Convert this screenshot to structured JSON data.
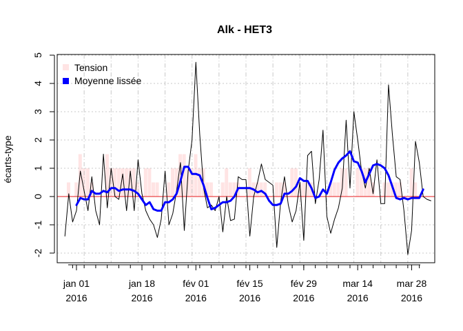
{
  "chart_data": {
    "type": "line",
    "title": "Alk - HET3",
    "xlabel": "",
    "ylabel": "écarts-type",
    "ylim": [
      -2,
      5
    ],
    "yticks": [
      -2,
      -1,
      0,
      1,
      2,
      3,
      4,
      5
    ],
    "x_range": [
      "2015-12-27",
      "2016-04-03"
    ],
    "xticks": [
      {
        "date": "2016-01-01",
        "label": [
          "jan 01",
          "2016"
        ]
      },
      {
        "date": "2016-01-18",
        "label": [
          "jan 18",
          "2016"
        ]
      },
      {
        "date": "2016-02-01",
        "label": [
          "fév 01",
          "2016"
        ]
      },
      {
        "date": "2016-02-15",
        "label": [
          "fév 15",
          "2016"
        ]
      },
      {
        "date": "2016-02-29",
        "label": [
          "fév 29",
          "2016"
        ]
      },
      {
        "date": "2016-03-14",
        "label": [
          "mar 14",
          "2016"
        ]
      },
      {
        "date": "2016-03-28",
        "label": [
          "mar 28",
          "2016"
        ]
      }
    ],
    "reference_line": {
      "y": 0,
      "color": "#e41a1c"
    },
    "grid": true,
    "legend": {
      "position": "top-left",
      "entries": [
        "Tension",
        "Moyenne lissée"
      ]
    },
    "series": [
      {
        "name": "Tension",
        "type": "bar",
        "color": "#ffe4e4",
        "x": [
          "2015-12-30",
          "2016-01-01",
          "2016-01-02",
          "2016-01-03",
          "2016-01-04",
          "2016-01-05",
          "2016-01-09",
          "2016-01-10",
          "2016-01-11",
          "2016-01-12",
          "2016-01-13",
          "2016-01-14",
          "2016-01-15",
          "2016-01-16",
          "2016-01-17",
          "2016-01-19",
          "2016-01-20",
          "2016-01-21",
          "2016-01-22",
          "2016-01-25",
          "2016-01-26",
          "2016-01-27",
          "2016-01-28",
          "2016-01-29",
          "2016-01-30",
          "2016-01-31",
          "2016-02-01",
          "2016-02-02",
          "2016-02-03",
          "2016-02-04",
          "2016-02-05",
          "2016-02-08",
          "2016-02-09",
          "2016-02-10",
          "2016-02-11",
          "2016-02-12",
          "2016-02-15",
          "2016-02-16",
          "2016-02-17",
          "2016-02-18",
          "2016-02-19",
          "2016-02-22",
          "2016-02-23",
          "2016-02-24",
          "2016-02-26",
          "2016-02-27",
          "2016-02-28",
          "2016-02-29",
          "2016-03-01",
          "2016-03-02",
          "2016-03-07",
          "2016-03-08",
          "2016-03-09",
          "2016-03-10",
          "2016-03-11",
          "2016-03-14",
          "2016-03-15",
          "2016-03-16",
          "2016-03-17",
          "2016-03-18",
          "2016-03-21",
          "2016-03-22",
          "2016-03-23",
          "2016-03-24",
          "2016-03-25",
          "2016-03-28",
          "2016-03-29"
        ],
        "values": [
          0.5,
          0.5,
          1.5,
          1.0,
          1.0,
          0.5,
          1.5,
          1.0,
          1.0,
          1.0,
          1.0,
          1.0,
          1.0,
          1.0,
          0.5,
          1.0,
          1.0,
          0.5,
          0.5,
          0.5,
          1.0,
          1.0,
          1.5,
          1.5,
          1.0,
          1.0,
          1.5,
          1.0,
          1.0,
          0.5,
          0.5,
          0.5,
          1.0,
          0.5,
          0.5,
          0.5,
          1.0,
          0.5,
          0.5,
          0.5,
          0.5,
          0.5,
          0.5,
          0.5,
          1.0,
          1.0,
          0.5,
          0.5,
          0.5,
          0.5,
          0.5,
          0.5,
          0.5,
          1.0,
          1.0,
          1.0,
          1.0,
          1.0,
          1.0,
          0.5,
          0.5,
          0.5,
          0.5,
          0.5,
          0.5,
          1.0,
          0.5
        ]
      },
      {
        "name": "",
        "type": "line",
        "color": "#000000",
        "x": [
          "2015-12-29",
          "2015-12-30",
          "2015-12-31",
          "2016-01-01",
          "2016-01-02",
          "2016-01-03",
          "2016-01-04",
          "2016-01-05",
          "2016-01-06",
          "2016-01-07",
          "2016-01-08",
          "2016-01-09",
          "2016-01-10",
          "2016-01-11",
          "2016-01-12",
          "2016-01-13",
          "2016-01-14",
          "2016-01-15",
          "2016-01-16",
          "2016-01-17",
          "2016-01-18",
          "2016-01-19",
          "2016-01-20",
          "2016-01-21",
          "2016-01-22",
          "2016-01-23",
          "2016-01-24",
          "2016-01-25",
          "2016-01-26",
          "2016-01-27",
          "2016-01-28",
          "2016-01-29",
          "2016-01-30",
          "2016-01-31",
          "2016-02-01",
          "2016-02-02",
          "2016-02-03",
          "2016-02-04",
          "2016-02-05",
          "2016-02-06",
          "2016-02-07",
          "2016-02-08",
          "2016-02-09",
          "2016-02-10",
          "2016-02-11",
          "2016-02-12",
          "2016-02-13",
          "2016-02-14",
          "2016-02-15",
          "2016-02-16",
          "2016-02-17",
          "2016-02-18",
          "2016-02-19",
          "2016-02-20",
          "2016-02-21",
          "2016-02-22",
          "2016-02-23",
          "2016-02-24",
          "2016-02-25",
          "2016-02-26",
          "2016-02-27",
          "2016-02-28",
          "2016-02-29",
          "2016-03-01",
          "2016-03-02",
          "2016-03-03",
          "2016-03-04",
          "2016-03-05",
          "2016-03-06",
          "2016-03-07",
          "2016-03-08",
          "2016-03-09",
          "2016-03-10",
          "2016-03-11",
          "2016-03-12",
          "2016-03-13",
          "2016-03-14",
          "2016-03-15",
          "2016-03-16",
          "2016-03-17",
          "2016-03-18",
          "2016-03-19",
          "2016-03-20",
          "2016-03-21",
          "2016-03-22",
          "2016-03-23",
          "2016-03-24",
          "2016-03-25",
          "2016-03-26",
          "2016-03-27",
          "2016-03-28",
          "2016-03-29",
          "2016-03-30",
          "2016-03-31",
          "2016-04-01",
          "2016-04-02"
        ],
        "values": [
          -1.4,
          0.1,
          -0.9,
          -0.5,
          0.9,
          0.2,
          -0.5,
          0.7,
          -0.5,
          -1.0,
          1.5,
          -0.4,
          1.0,
          0.0,
          -0.1,
          0.8,
          -0.5,
          0.9,
          -0.5,
          1.3,
          0.1,
          -0.5,
          -0.8,
          -1.0,
          -1.45,
          -0.8,
          0.9,
          -1.0,
          -0.6,
          0.2,
          1.2,
          -1.2,
          0.9,
          2.0,
          4.75,
          2.2,
          0.3,
          -0.4,
          -0.3,
          -0.5,
          0.0,
          -1.25,
          0.0,
          -0.85,
          -0.8,
          0.7,
          0.6,
          0.6,
          -1.4,
          0.0,
          0.5,
          1.15,
          0.6,
          0.5,
          0.4,
          -1.8,
          -0.2,
          0.7,
          -0.3,
          -0.9,
          -0.5,
          0.5,
          -1.55,
          1.45,
          1.6,
          -0.25,
          0.6,
          2.35,
          -0.7,
          -1.3,
          -0.8,
          -0.4,
          0.3,
          2.7,
          0.3,
          3.0,
          2.0,
          0.9,
          0.3,
          1.0,
          0.1,
          1.3,
          -0.25,
          -0.25,
          3.95,
          2.2,
          0.7,
          0.6,
          -0.5,
          -2.05,
          -1.2,
          1.95,
          1.2,
          0.0,
          -0.1,
          -0.15
        ]
      },
      {
        "name": "Moyenne lissée",
        "type": "line",
        "color": "#0000ff",
        "x": [
          "2016-01-01",
          "2016-01-02",
          "2016-01-03",
          "2016-01-04",
          "2016-01-05",
          "2016-01-06",
          "2016-01-07",
          "2016-01-08",
          "2016-01-09",
          "2016-01-10",
          "2016-01-11",
          "2016-01-12",
          "2016-01-13",
          "2016-01-14",
          "2016-01-15",
          "2016-01-16",
          "2016-01-17",
          "2016-01-18",
          "2016-01-19",
          "2016-01-20",
          "2016-01-21",
          "2016-01-22",
          "2016-01-23",
          "2016-01-24",
          "2016-01-25",
          "2016-01-26",
          "2016-01-27",
          "2016-01-28",
          "2016-01-29",
          "2016-01-30",
          "2016-01-31",
          "2016-02-01",
          "2016-02-02",
          "2016-02-03",
          "2016-02-04",
          "2016-02-05",
          "2016-02-06",
          "2016-02-07",
          "2016-02-08",
          "2016-02-09",
          "2016-02-10",
          "2016-02-11",
          "2016-02-12",
          "2016-02-13",
          "2016-02-14",
          "2016-02-15",
          "2016-02-16",
          "2016-02-17",
          "2016-02-18",
          "2016-02-19",
          "2016-02-20",
          "2016-02-21",
          "2016-02-22",
          "2016-02-23",
          "2016-02-24",
          "2016-02-25",
          "2016-02-26",
          "2016-02-27",
          "2016-02-28",
          "2016-02-29",
          "2016-03-01",
          "2016-03-02",
          "2016-03-03",
          "2016-03-04",
          "2016-03-05",
          "2016-03-06",
          "2016-03-07",
          "2016-03-08",
          "2016-03-09",
          "2016-03-10",
          "2016-03-11",
          "2016-03-12",
          "2016-03-13",
          "2016-03-14",
          "2016-03-15",
          "2016-03-16",
          "2016-03-17",
          "2016-03-18",
          "2016-03-19",
          "2016-03-20",
          "2016-03-21",
          "2016-03-22",
          "2016-03-23",
          "2016-03-24",
          "2016-03-25",
          "2016-03-26",
          "2016-03-27",
          "2016-03-28",
          "2016-03-29",
          "2016-03-30",
          "2016-03-31"
        ],
        "values": [
          -0.3,
          -0.05,
          -0.1,
          -0.1,
          0.2,
          0.1,
          0.1,
          0.2,
          0.15,
          0.3,
          0.3,
          0.2,
          0.25,
          0.25,
          0.25,
          0.2,
          0.1,
          -0.1,
          -0.3,
          -0.2,
          -0.45,
          -0.5,
          -0.5,
          -0.2,
          -0.2,
          -0.1,
          0.1,
          0.55,
          1.05,
          1.05,
          0.8,
          0.8,
          0.75,
          0.4,
          -0.05,
          -0.45,
          -0.4,
          -0.3,
          -0.2,
          -0.2,
          -0.15,
          0.0,
          0.3,
          0.3,
          0.3,
          0.3,
          0.25,
          0.15,
          0.2,
          0.1,
          -0.15,
          -0.3,
          -0.3,
          -0.25,
          0.1,
          0.1,
          0.2,
          0.35,
          0.65,
          0.55,
          0.55,
          0.3,
          -0.05,
          0.0,
          0.25,
          0.1,
          0.5,
          0.95,
          1.2,
          1.35,
          1.45,
          1.6,
          1.25,
          1.2,
          0.9,
          0.5,
          0.8,
          1.1,
          1.15,
          1.1,
          1.0,
          0.75,
          0.35,
          -0.05,
          -0.1,
          -0.05,
          -0.1,
          -0.05,
          -0.05,
          -0.05,
          0.25
        ]
      }
    ]
  }
}
